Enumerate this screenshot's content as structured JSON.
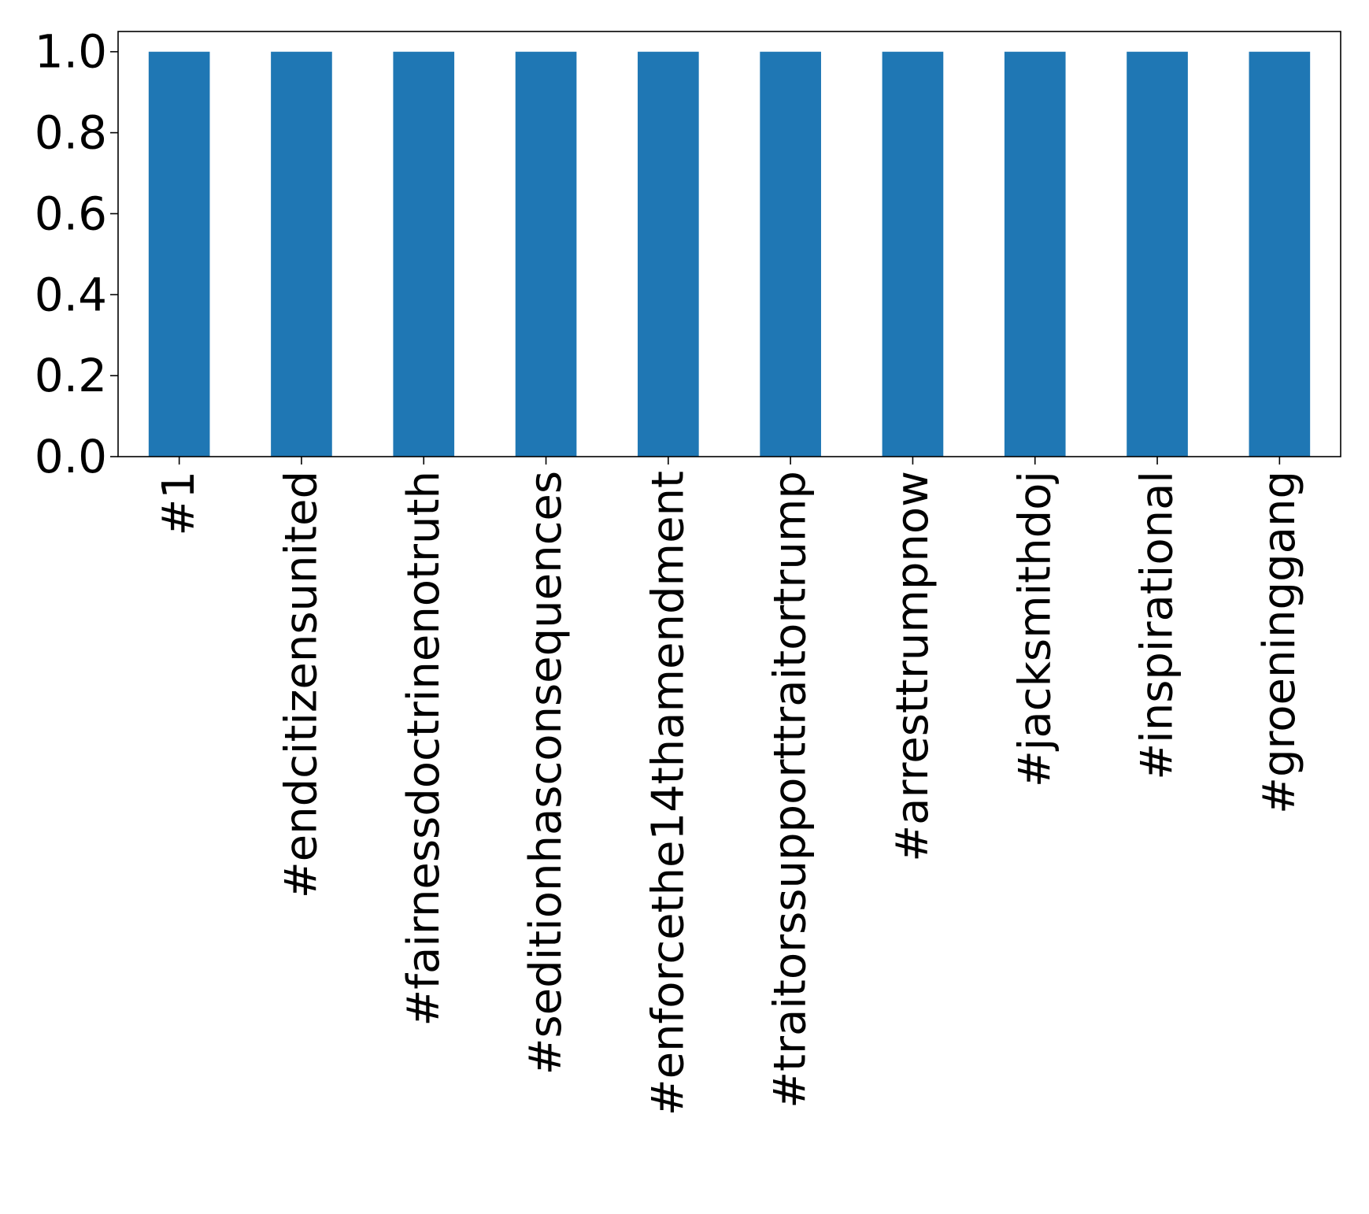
{
  "chart_data": {
    "type": "bar",
    "title": "",
    "xlabel": "",
    "ylabel": "",
    "categories": [
      "#1",
      "#endcitizensunited",
      "#fairnessdoctrinenotruth",
      "#seditionhasconsequences",
      "#enforcethe14thamendment",
      "#traitorssupporttraitortrump",
      "#arresttrumpnow",
      "#jacksmithdoj",
      "#inspirational",
      "#groeninggang"
    ],
    "values": [
      1,
      1,
      1,
      1,
      1,
      1,
      1,
      1,
      1,
      1
    ],
    "ylim": [
      0,
      1.05
    ],
    "yticks": [
      0.0,
      0.2,
      0.4,
      0.6,
      0.8,
      1.0
    ],
    "ytick_labels": [
      "0.0",
      "0.2",
      "0.4",
      "0.6",
      "0.8",
      "1.0"
    ],
    "bar_color": "#1f77b4",
    "grid": false,
    "legend": "none"
  }
}
